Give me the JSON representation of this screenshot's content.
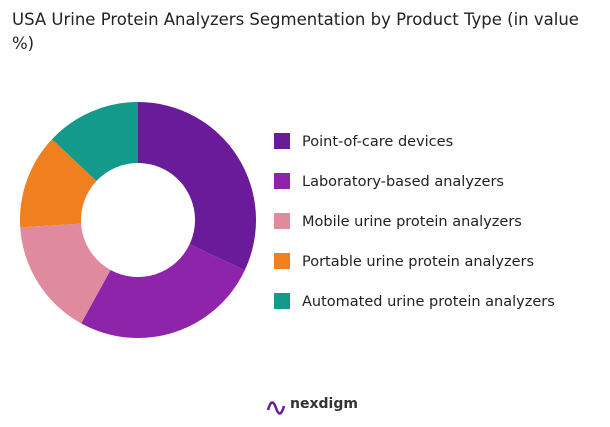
{
  "chart_data": {
    "type": "donut",
    "title": "USA Urine Protein Analyzers Segmentation by Product Type (in value %)",
    "categories": [
      "Point-of-care devices",
      "Laboratory-based analyzers",
      "Mobile urine protein analyzers",
      "Portable urine protein analyzers",
      "Automated urine protein analyzers"
    ],
    "values": [
      32,
      26,
      16,
      13,
      13
    ],
    "colors": [
      "#6a1b9a",
      "#8e24aa",
      "#e08a9e",
      "#f07f1f",
      "#149a8a"
    ],
    "legend": "right"
  },
  "logo": "nexdigm"
}
